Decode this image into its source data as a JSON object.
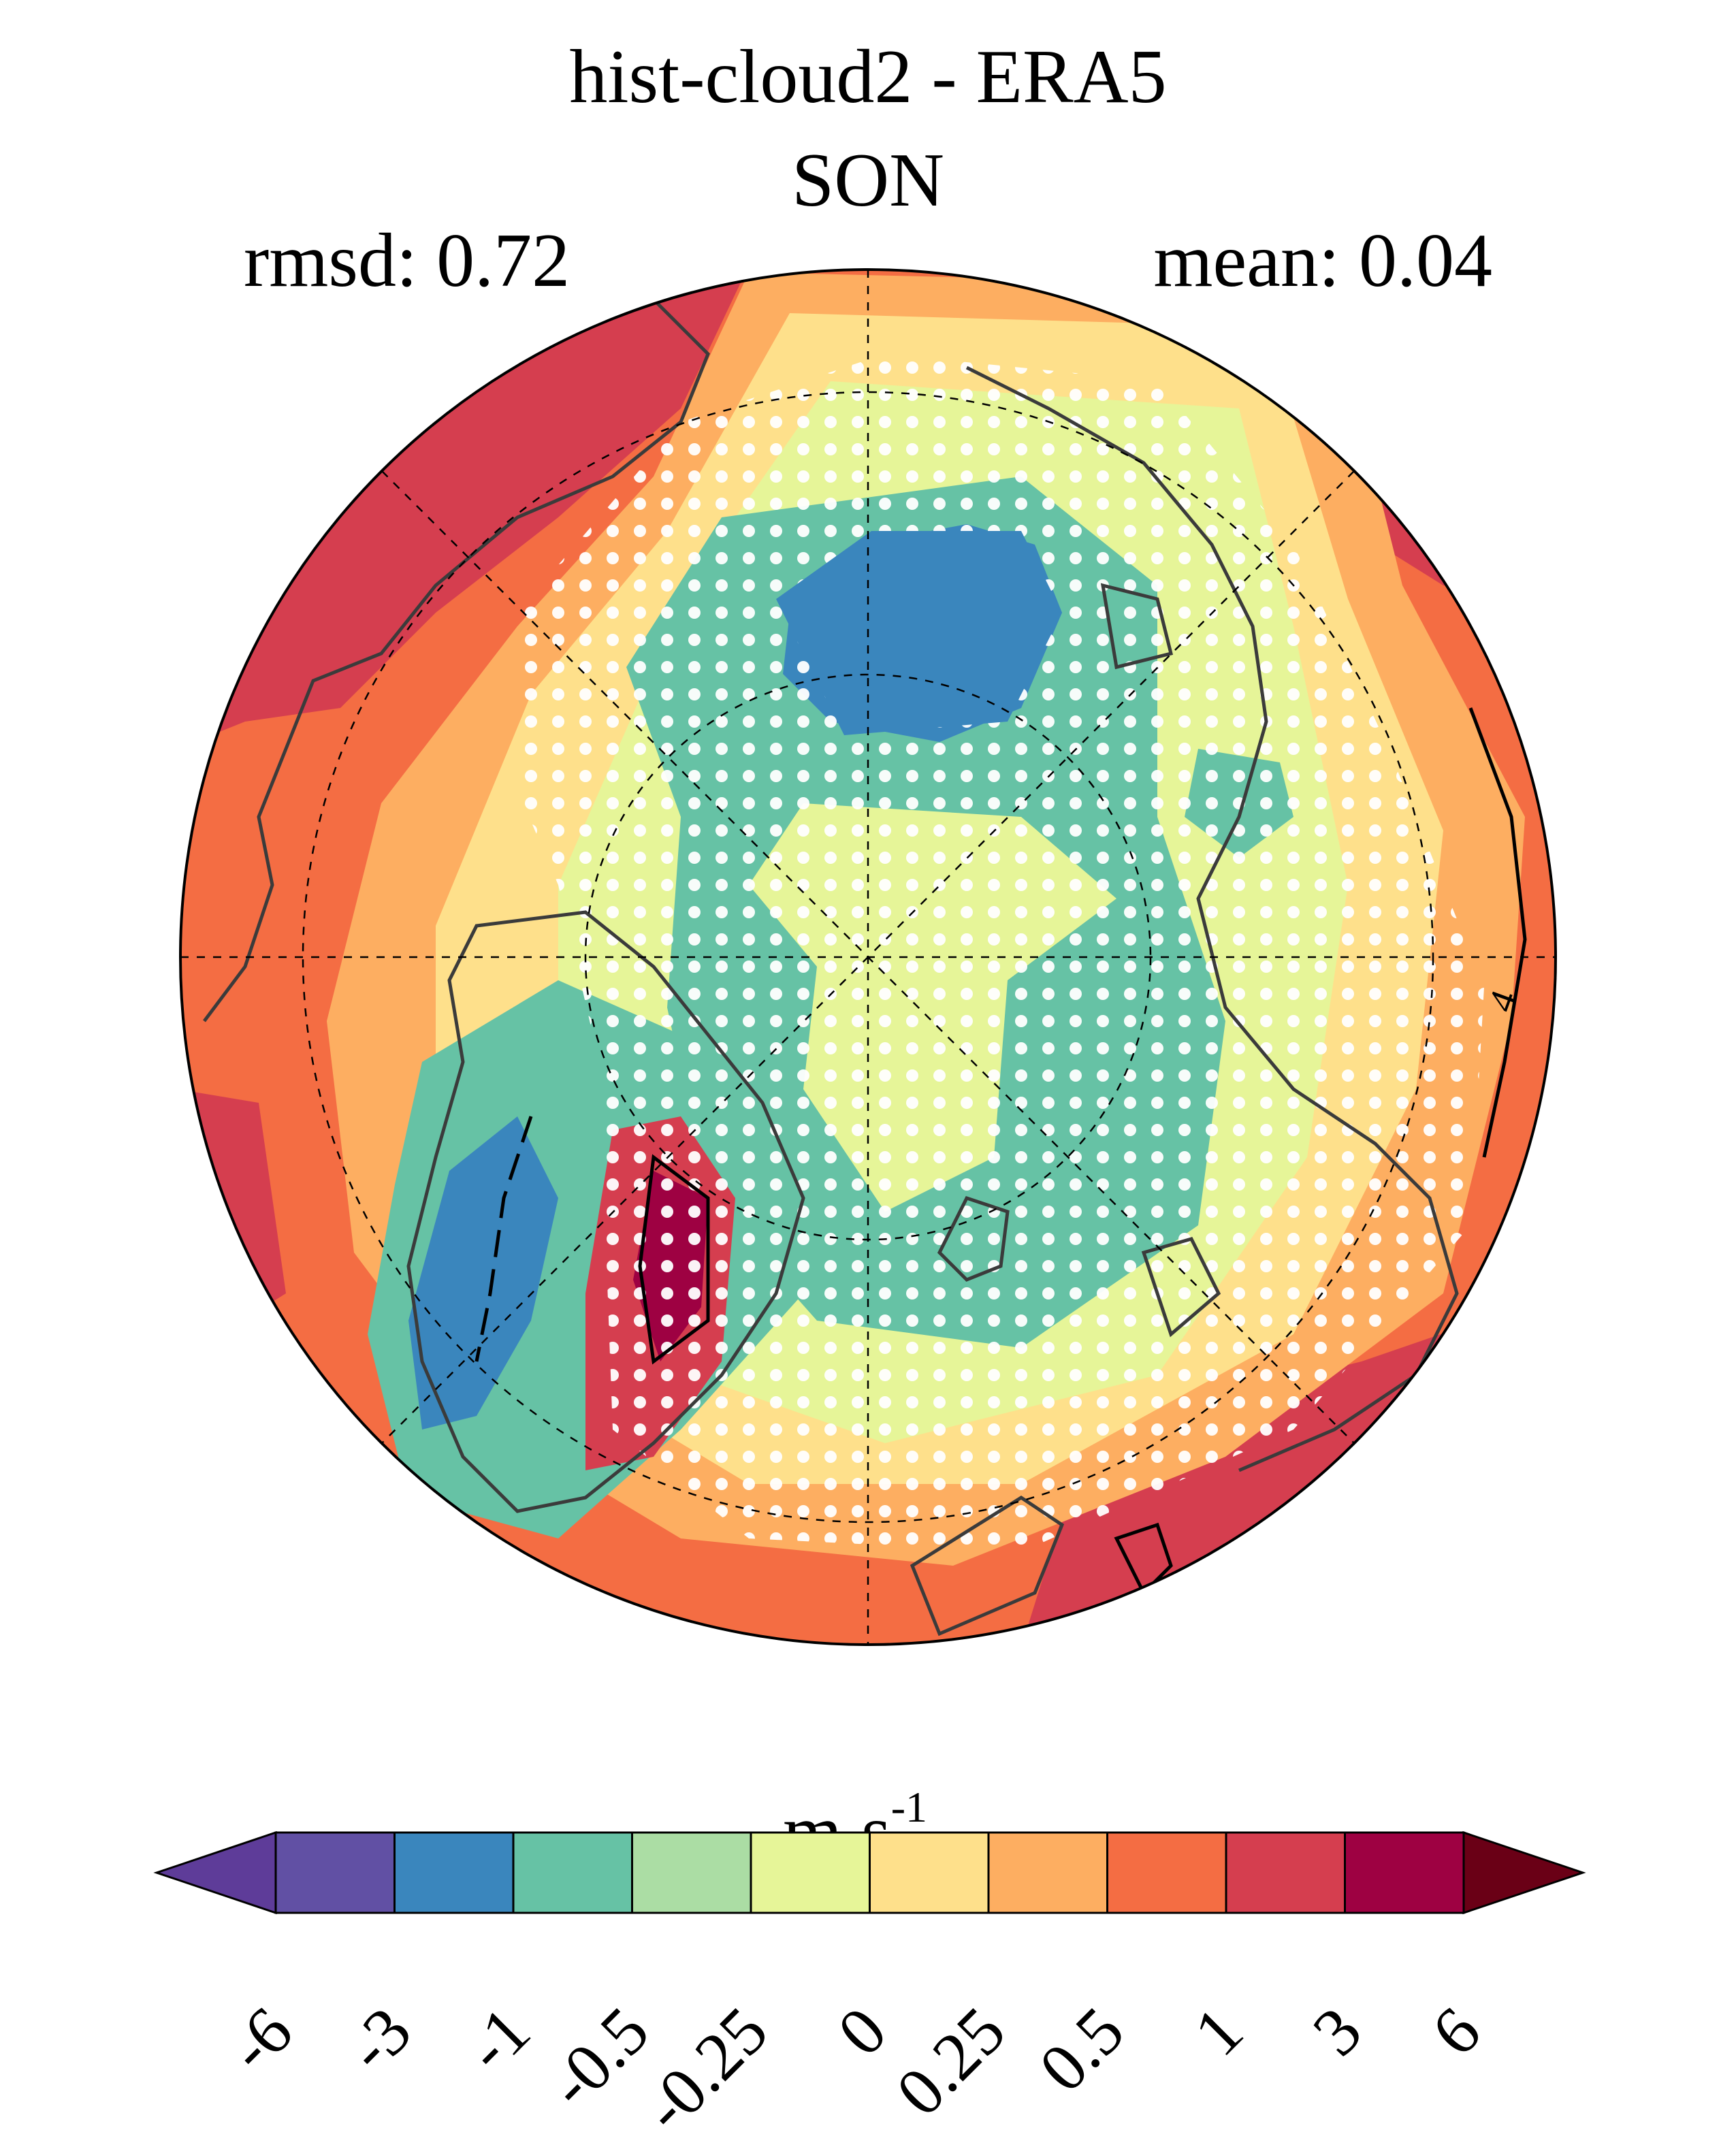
{
  "title": {
    "line1": "hist-cloud2 - ERA5",
    "line2": "SON"
  },
  "stats": {
    "rmsd": "rmsd: 0.72",
    "mean": "mean: 0.04"
  },
  "map": {
    "projection": "north polar stereographic",
    "contour_label": "4",
    "stippling": "white dots"
  },
  "colorbar": {
    "unit_base": "m s",
    "unit_exp": "-1",
    "tick_labels": [
      "-6",
      "-3",
      "-1",
      "-0.5",
      "-0.25",
      "0",
      "0.25",
      "0.5",
      "1",
      "3",
      "6"
    ],
    "colors": [
      "#5e3c99",
      "#6150a4",
      "#3a86bd",
      "#66c2a5",
      "#abdda4",
      "#e6f598",
      "#fee08b",
      "#fdae61",
      "#f46d43",
      "#d53e4f",
      "#9e0142",
      "#6a0016"
    ]
  }
}
